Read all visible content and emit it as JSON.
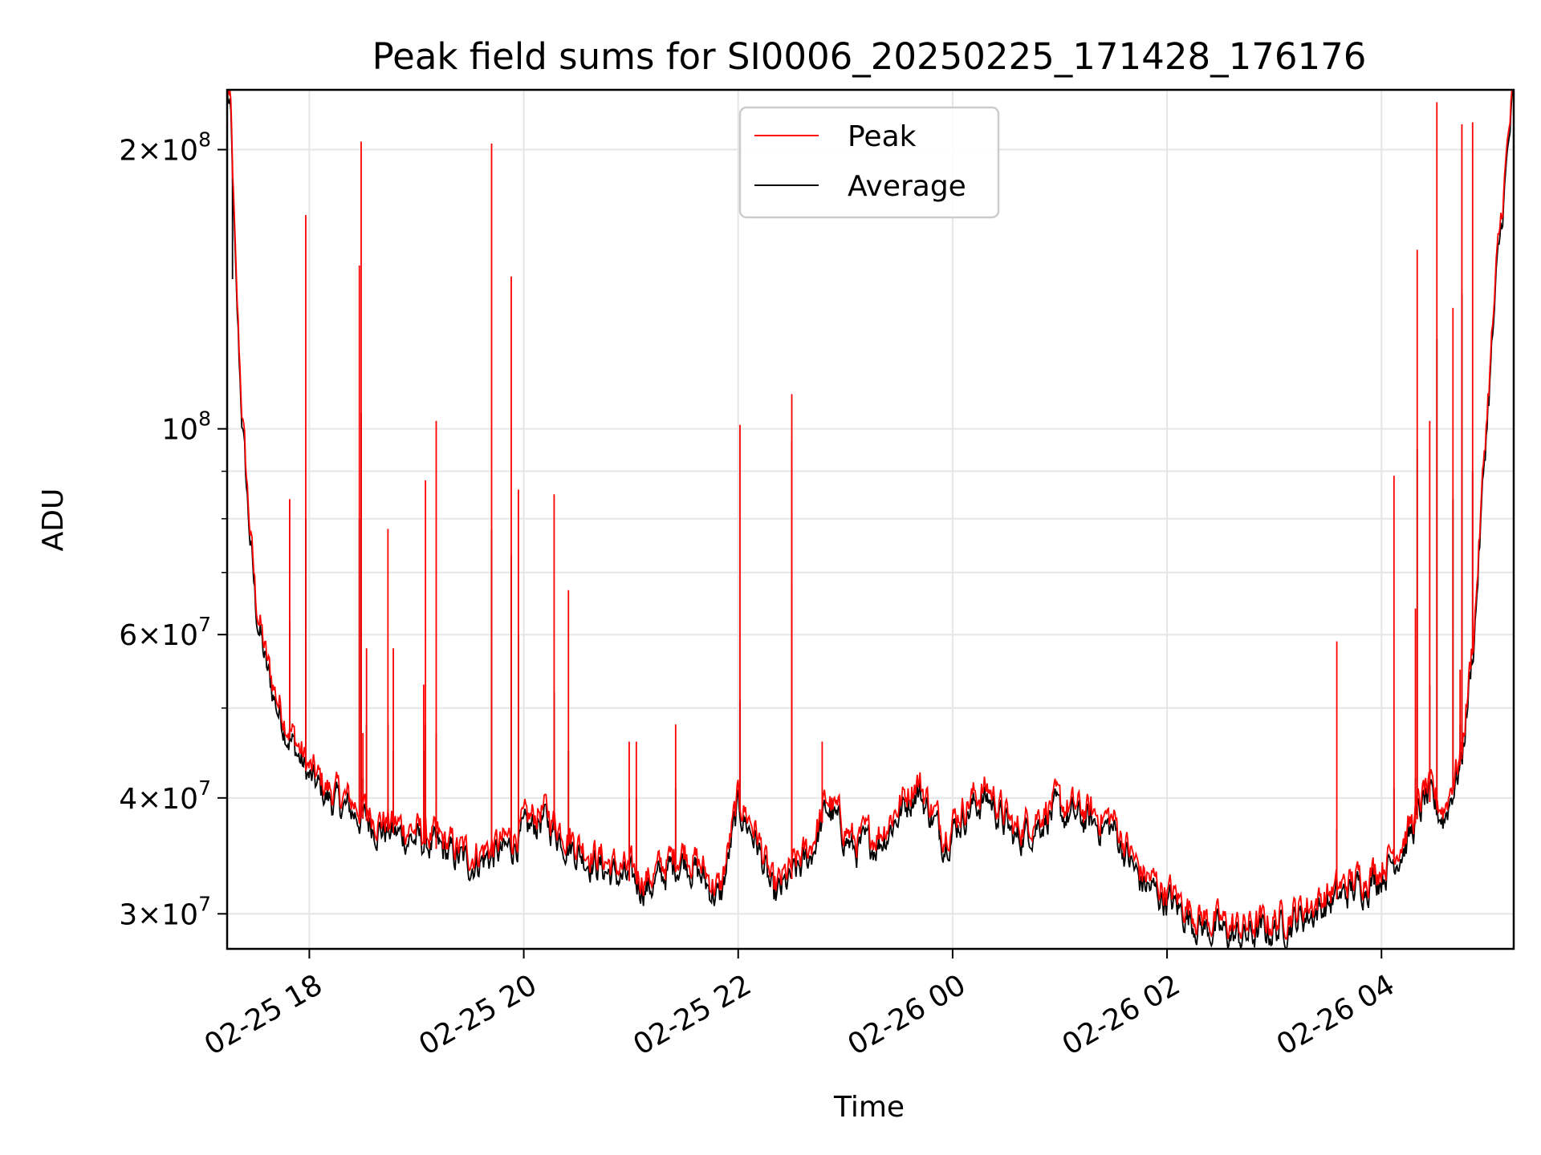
{
  "chart_data": {
    "type": "line",
    "title": "Peak field sums for SI0006_20250225_171428_176176",
    "xlabel": "Time",
    "ylabel": "ADU",
    "yscale": "log",
    "grid": true,
    "legend_position": "top-center",
    "xlim": [
      "2025-02-25 17:14",
      "2025-02-26 05:14"
    ],
    "ylim": [
      27500000,
      232000000
    ],
    "x_ticks": [
      {
        "t": "2025-02-25 18:00",
        "label": "02-25 18"
      },
      {
        "t": "2025-02-25 20:00",
        "label": "02-25 20"
      },
      {
        "t": "2025-02-25 22:00",
        "label": "02-25 22"
      },
      {
        "t": "2025-02-26 00:00",
        "label": "02-26 00"
      },
      {
        "t": "2025-02-26 02:00",
        "label": "02-26 02"
      },
      {
        "t": "2025-02-26 04:00",
        "label": "02-26 04"
      }
    ],
    "y_major_ticks": [
      {
        "value": 30000000,
        "mant": "3",
        "exp": "7"
      },
      {
        "value": 40000000,
        "mant": "4",
        "exp": "7"
      },
      {
        "value": 60000000,
        "mant": "6",
        "exp": "7"
      },
      {
        "value": 100000000,
        "mant": "",
        "exp": "8"
      },
      {
        "value": 200000000,
        "mant": "2",
        "exp": "8"
      }
    ],
    "y_minor_gridlines": [
      50000000,
      70000000,
      80000000,
      90000000
    ],
    "average_baseline": [
      [
        "2025-02-25 17:14",
        232000000
      ],
      [
        "2025-02-25 17:16",
        215000000
      ],
      [
        "2025-02-25 17:19",
        140000000
      ],
      [
        "2025-02-25 17:22",
        105000000
      ],
      [
        "2025-02-25 17:26",
        80000000
      ],
      [
        "2025-02-25 17:30",
        64000000
      ],
      [
        "2025-02-25 17:36",
        55000000
      ],
      [
        "2025-02-25 17:42",
        50000000
      ],
      [
        "2025-02-25 17:50",
        46000000
      ],
      [
        "2025-02-25 18:00",
        42000000
      ],
      [
        "2025-02-25 18:10",
        40000000
      ],
      [
        "2025-02-25 18:20",
        39000000
      ],
      [
        "2025-02-25 18:40",
        37000000
      ],
      [
        "2025-02-25 19:00",
        36000000
      ],
      [
        "2025-02-25 19:30",
        34000000
      ],
      [
        "2025-02-25 19:50",
        35000000
      ],
      [
        "2025-02-25 20:10",
        38000000
      ],
      [
        "2025-02-25 20:30",
        35000000
      ],
      [
        "2025-02-25 20:50",
        33000000
      ],
      [
        "2025-02-25 21:10",
        32000000
      ],
      [
        "2025-02-25 21:30",
        34500000
      ],
      [
        "2025-02-25 21:50",
        31000000
      ],
      [
        "2025-02-25 22:00",
        39000000
      ],
      [
        "2025-02-25 22:10",
        36000000
      ],
      [
        "2025-02-25 22:20",
        31000000
      ],
      [
        "2025-02-25 22:40",
        34500000
      ],
      [
        "2025-02-25 22:50",
        39000000
      ],
      [
        "2025-02-25 23:05",
        35000000
      ],
      [
        "2025-02-25 23:20",
        36000000
      ],
      [
        "2025-02-25 23:40",
        41000000
      ],
      [
        "2025-02-25 23:55",
        36000000
      ],
      [
        "2025-02-26 00:10",
        39000000
      ],
      [
        "2025-02-26 00:20",
        40000000
      ],
      [
        "2025-02-26 00:35",
        36000000
      ],
      [
        "2025-02-26 00:55",
        38500000
      ],
      [
        "2025-02-26 01:10",
        38000000
      ],
      [
        "2025-02-26 01:30",
        37000000
      ],
      [
        "2025-02-26 01:45",
        32500000
      ],
      [
        "2025-02-26 02:00",
        31000000
      ],
      [
        "2025-02-26 02:20",
        29000000
      ],
      [
        "2025-02-26 02:40",
        28300000
      ],
      [
        "2025-02-26 03:00",
        28800000
      ],
      [
        "2025-02-26 03:20",
        30000000
      ],
      [
        "2025-02-26 03:40",
        31500000
      ],
      [
        "2025-02-26 04:00",
        33000000
      ],
      [
        "2025-02-26 04:15",
        36000000
      ],
      [
        "2025-02-26 04:25",
        40000000
      ],
      [
        "2025-02-26 04:35",
        38000000
      ],
      [
        "2025-02-26 04:45",
        44000000
      ],
      [
        "2025-02-26 04:52",
        60000000
      ],
      [
        "2025-02-26 04:58",
        95000000
      ],
      [
        "2025-02-26 05:05",
        150000000
      ],
      [
        "2025-02-26 05:14",
        232000000
      ]
    ],
    "peak_spikes": [
      [
        "2025-02-25 17:17",
        195000000,
        145000000
      ],
      [
        "2025-02-25 17:49",
        84000000,
        62000000
      ],
      [
        "2025-02-25 17:58",
        170000000,
        80000000
      ],
      [
        "2025-02-25 18:30",
        47000000,
        42000000
      ],
      [
        "2025-02-25 18:28",
        150000000,
        80000000
      ],
      [
        "2025-02-25 18:29",
        204000000,
        104000000
      ],
      [
        "2025-02-25 18:32",
        58000000,
        48000000
      ],
      [
        "2025-02-25 18:44",
        78000000,
        48000000
      ],
      [
        "2025-02-25 18:47",
        58000000,
        45000000
      ],
      [
        "2025-02-25 19:04",
        53000000,
        45000000
      ],
      [
        "2025-02-25 19:05",
        88000000,
        48000000
      ],
      [
        "2025-02-25 19:11",
        102000000,
        47000000
      ],
      [
        "2025-02-25 19:42",
        203000000,
        78000000
      ],
      [
        "2025-02-25 19:53",
        146000000,
        73000000
      ],
      [
        "2025-02-25 19:57",
        86000000,
        60000000
      ],
      [
        "2025-02-25 20:17",
        85000000,
        52000000
      ],
      [
        "2025-02-25 20:25",
        67000000,
        45000000
      ],
      [
        "2025-02-25 20:59",
        46000000,
        40000000
      ],
      [
        "2025-02-25 21:03",
        46000000,
        40000000
      ],
      [
        "2025-02-25 21:25",
        48000000,
        41000000
      ],
      [
        "2025-02-25 22:01",
        101000000,
        51000000
      ],
      [
        "2025-02-25 22:30",
        97000000,
        68000000
      ],
      [
        "2025-02-25 22:30",
        109000000,
        49000000
      ],
      [
        "2025-02-25 22:47",
        46000000,
        41000000
      ],
      [
        "2025-02-26 03:35",
        59000000,
        37000000
      ],
      [
        "2025-02-26 04:07",
        89000000,
        41000000
      ],
      [
        "2025-02-26 04:19",
        64000000,
        42000000
      ],
      [
        "2025-02-26 04:20",
        156000000,
        95000000
      ],
      [
        "2025-02-26 04:27",
        102000000,
        53000000
      ],
      [
        "2025-02-26 04:31",
        225000000,
        125000000
      ],
      [
        "2025-02-26 04:40",
        135000000,
        84000000
      ],
      [
        "2025-02-26 04:44",
        55000000,
        48000000
      ],
      [
        "2025-02-26 04:45",
        213000000,
        140000000
      ],
      [
        "2025-02-26 04:51",
        214000000,
        90000000
      ]
    ],
    "series": [
      {
        "name": "Peak",
        "color": "#ff0000"
      },
      {
        "name": "Average",
        "color": "#000000"
      }
    ]
  }
}
